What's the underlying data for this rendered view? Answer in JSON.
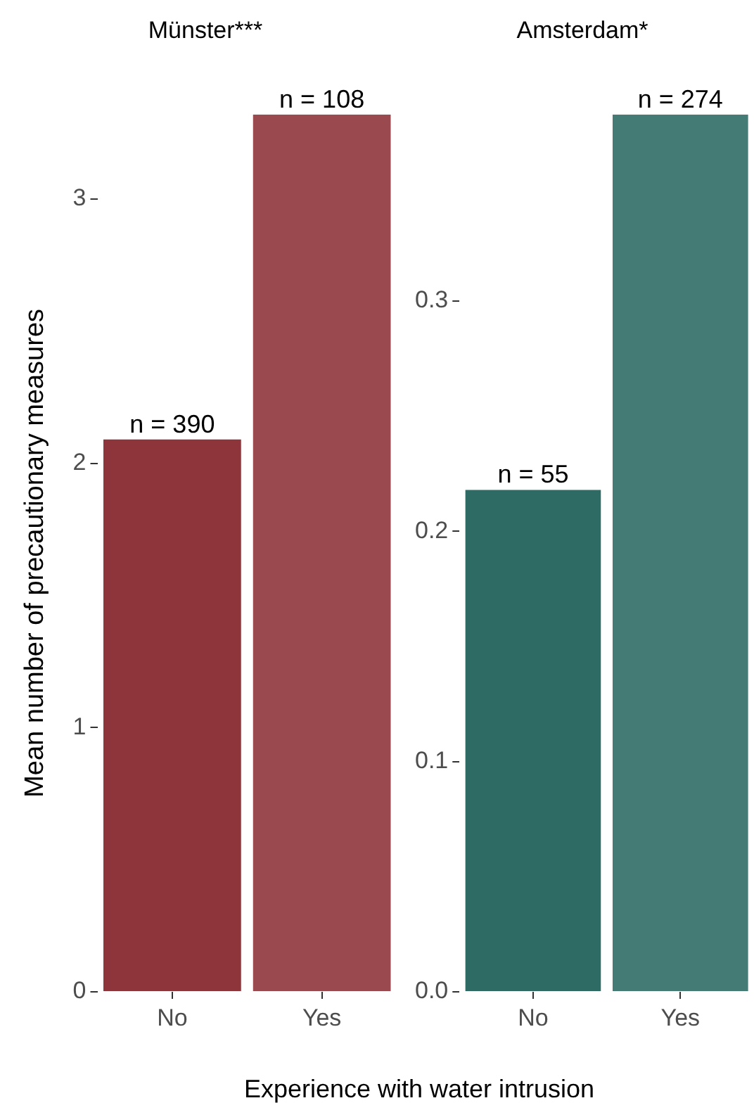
{
  "chart_data": [
    {
      "type": "bar",
      "title": "Münster***",
      "ylabel": "Mean number of precautionary measures",
      "xlabel": "Experience with water intrusion",
      "categories": [
        "No",
        "Yes"
      ],
      "values": [
        2.09,
        3.32
      ],
      "colors": [
        "#8e343b",
        "#9a4a4f"
      ],
      "annotations": [
        {
          "text": "n = 390",
          "x": "No",
          "y": 2.09
        },
        {
          "text": "n = 108",
          "x": "Yes",
          "y": 3.32
        }
      ],
      "ylim": [
        0,
        3.32
      ],
      "yticks": [
        0,
        1,
        2,
        3
      ]
    },
    {
      "type": "bar",
      "title": "Amsterdam*",
      "categories": [
        "No",
        "Yes"
      ],
      "values": [
        0.218,
        0.381
      ],
      "colors": [
        "#2e6b65",
        "#447b75"
      ],
      "annotations": [
        {
          "text": "n = 55",
          "x": "No",
          "y": 0.218
        },
        {
          "text": "n = 274",
          "x": "Yes",
          "y": 0.381
        }
      ],
      "ylim": [
        0,
        0.381
      ],
      "yticks": [
        {
          "value": 0,
          "label": "0.0"
        },
        0.1,
        0.2,
        0.3
      ]
    }
  ]
}
